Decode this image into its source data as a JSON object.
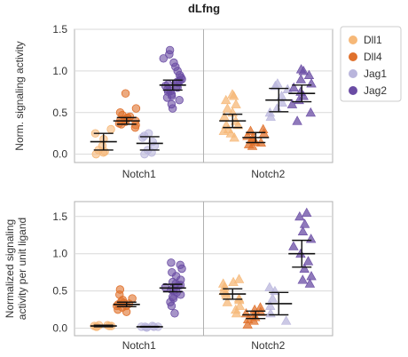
{
  "colors": {
    "Dll1": "#f6b878",
    "Dll4": "#e0712c",
    "Jag1": "#b9b5dc",
    "Jag2": "#6a4ca4",
    "grid": "#d9d9d9",
    "frame": "#b0b0b0"
  },
  "legend": {
    "placement": "right-top",
    "entries": [
      {
        "key": "Dll1",
        "label": "Dll1"
      },
      {
        "key": "Dll4",
        "label": "Dll4"
      },
      {
        "key": "Jag1",
        "label": "Jag1"
      },
      {
        "key": "Jag2",
        "label": "Jag2"
      }
    ]
  },
  "chart_data": [
    {
      "type": "scatter",
      "title": "dLfng",
      "ylabel": "Norm. signaling activity",
      "ylim": [
        -0.1,
        1.5
      ],
      "yticks": [
        0.0,
        0.5,
        1.0,
        1.5
      ],
      "ytick_labels": [
        "0.0",
        "0.5",
        "1.0",
        "1.5"
      ],
      "categories": [
        "Notch1",
        "Notch2"
      ],
      "grid": true,
      "series": [
        {
          "name": "Dll1",
          "marker": {
            "Notch1": "circle",
            "Notch2": "triangle"
          },
          "groups": [
            {
              "category": "Notch1",
              "mean": 0.15,
              "err": 0.1,
              "points": [
                0.02,
                0.03,
                0.0,
                0.05,
                0.1,
                0.18,
                0.25,
                0.3
              ]
            },
            {
              "category": "Notch2",
              "mean": 0.4,
              "err": 0.08,
              "points": [
                0.2,
                0.25,
                0.3,
                0.35,
                0.4,
                0.45,
                0.5,
                0.55,
                0.6,
                0.65,
                0.7,
                0.72,
                0.35,
                0.28
              ]
            }
          ]
        },
        {
          "name": "Dll4",
          "marker": {
            "Notch1": "circle",
            "Notch2": "triangle"
          },
          "groups": [
            {
              "category": "Notch1",
              "mean": 0.4,
              "err": 0.04,
              "points": [
                0.32,
                0.35,
                0.37,
                0.39,
                0.4,
                0.41,
                0.42,
                0.43,
                0.45,
                0.47,
                0.5,
                0.55,
                0.73,
                0.36,
                0.44
              ]
            },
            {
              "category": "Notch2",
              "mean": 0.2,
              "err": 0.06,
              "points": [
                0.1,
                0.12,
                0.14,
                0.17,
                0.2,
                0.22,
                0.25,
                0.28,
                0.3,
                0.15
              ]
            }
          ]
        },
        {
          "name": "Jag1",
          "marker": {
            "Notch1": "circle",
            "Notch2": "triangle"
          },
          "groups": [
            {
              "category": "Notch1",
              "mean": 0.13,
              "err": 0.08,
              "points": [
                0.0,
                0.02,
                0.05,
                0.1,
                0.15,
                0.2,
                0.22,
                0.25
              ]
            },
            {
              "category": "Notch2",
              "mean": 0.65,
              "err": 0.14,
              "points": [
                0.45,
                0.5,
                0.55,
                0.62,
                0.7,
                0.78,
                0.82,
                0.85
              ]
            }
          ]
        },
        {
          "name": "Jag2",
          "marker": {
            "Notch1": "circle",
            "Notch2": "triangle"
          },
          "groups": [
            {
              "category": "Notch1",
              "mean": 0.83,
              "err": 0.06,
              "points": [
                0.55,
                0.6,
                0.65,
                0.7,
                0.72,
                0.75,
                0.78,
                0.8,
                0.82,
                0.84,
                0.86,
                0.88,
                0.9,
                0.92,
                0.95,
                1.0,
                1.05,
                1.1,
                1.15,
                1.2,
                1.25,
                0.68,
                0.76,
                0.81,
                0.87
              ]
            },
            {
              "category": "Notch2",
              "mean": 0.73,
              "err": 0.1,
              "points": [
                0.4,
                0.5,
                0.6,
                0.65,
                0.7,
                0.75,
                0.8,
                0.85,
                0.9,
                0.95,
                1.0,
                1.02
              ]
            }
          ]
        }
      ]
    },
    {
      "type": "scatter",
      "title": "",
      "ylabel": "Normalized signaling activity per unit ligand",
      "ylabel_lines": [
        "Normalized signaling",
        "activity per unit ligand"
      ],
      "ylim": [
        -0.1,
        1.7
      ],
      "yticks": [
        0.0,
        0.5,
        1.0,
        1.5
      ],
      "ytick_labels": [
        "0.0",
        "0.5",
        "1.0",
        "1.5"
      ],
      "categories": [
        "Notch1",
        "Notch2"
      ],
      "grid": true,
      "series": [
        {
          "name": "Dll1",
          "marker": {
            "Notch1": "circle",
            "Notch2": "triangle"
          },
          "groups": [
            {
              "category": "Notch1",
              "mean": 0.03,
              "err": 0.01,
              "points": [
                0.02,
                0.03,
                0.03,
                0.04,
                0.03,
                0.02,
                0.04
              ]
            },
            {
              "category": "Notch2",
              "mean": 0.46,
              "err": 0.07,
              "points": [
                0.2,
                0.25,
                0.3,
                0.35,
                0.4,
                0.45,
                0.5,
                0.55,
                0.6,
                0.62,
                0.66,
                0.38,
                0.48
              ]
            }
          ]
        },
        {
          "name": "Dll4",
          "marker": {
            "Notch1": "circle",
            "Notch2": "triangle"
          },
          "groups": [
            {
              "category": "Notch1",
              "mean": 0.32,
              "err": 0.03,
              "points": [
                0.22,
                0.25,
                0.28,
                0.3,
                0.32,
                0.34,
                0.36,
                0.38,
                0.4,
                0.45,
                0.52,
                0.3,
                0.33
              ]
            },
            {
              "category": "Notch2",
              "mean": 0.18,
              "err": 0.05,
              "points": [
                0.05,
                0.1,
                0.12,
                0.15,
                0.18,
                0.2,
                0.22,
                0.25,
                0.28
              ]
            }
          ]
        },
        {
          "name": "Jag1",
          "marker": {
            "Notch1": "circle",
            "Notch2": "triangle"
          },
          "groups": [
            {
              "category": "Notch1",
              "mean": 0.02,
              "err": 0.005,
              "points": [
                0.01,
                0.02,
                0.02,
                0.03,
                0.02,
                0.01,
                0.02
              ]
            },
            {
              "category": "Notch2",
              "mean": 0.33,
              "err": 0.15,
              "points": [
                0.1,
                0.2,
                0.3,
                0.4,
                0.5,
                0.55
              ]
            }
          ]
        },
        {
          "name": "Jag2",
          "marker": {
            "Notch1": "circle",
            "Notch2": "triangle"
          },
          "groups": [
            {
              "category": "Notch1",
              "mean": 0.54,
              "err": 0.05,
              "points": [
                0.2,
                0.3,
                0.35,
                0.4,
                0.45,
                0.5,
                0.52,
                0.55,
                0.58,
                0.6,
                0.62,
                0.65,
                0.7,
                0.75,
                0.8,
                0.85,
                0.88,
                0.42,
                0.48,
                0.57
              ]
            },
            {
              "category": "Notch2",
              "mean": 1.0,
              "err": 0.18,
              "points": [
                0.6,
                0.65,
                0.7,
                0.8,
                0.9,
                1.0,
                1.1,
                1.2,
                1.3,
                1.4,
                1.5,
                1.55
              ]
            }
          ]
        }
      ]
    }
  ]
}
